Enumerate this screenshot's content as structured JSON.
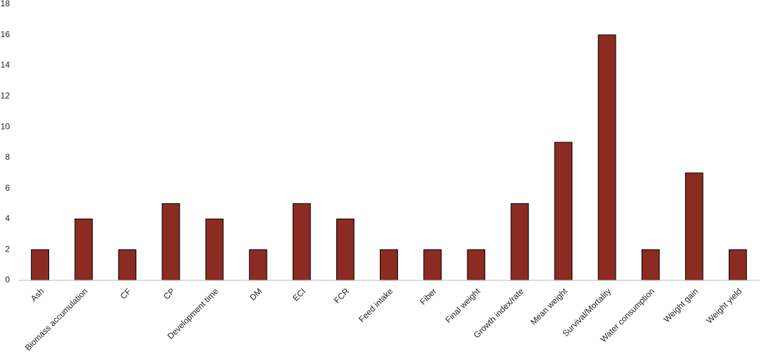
{
  "chart_data": {
    "type": "bar",
    "categories": [
      "Ash",
      "Biomass accumulation",
      "CF",
      "CP",
      "Development time",
      "DM",
      "ECI",
      "FCR",
      "Feed intake",
      "Fiber",
      "Final weight",
      "Growth index/rate",
      "Mean weight",
      "Survival/Mortality",
      "Water consumption",
      "Weight gain",
      "Weight yield"
    ],
    "values": [
      2,
      4,
      2,
      5,
      4,
      2,
      5,
      4,
      2,
      2,
      2,
      5,
      9,
      16,
      2,
      7,
      2
    ],
    "color": "#8b2b22",
    "ylim": [
      0,
      18
    ],
    "yticks": [
      0,
      2,
      4,
      6,
      8,
      10,
      12,
      14,
      16,
      18
    ],
    "grid": false
  }
}
